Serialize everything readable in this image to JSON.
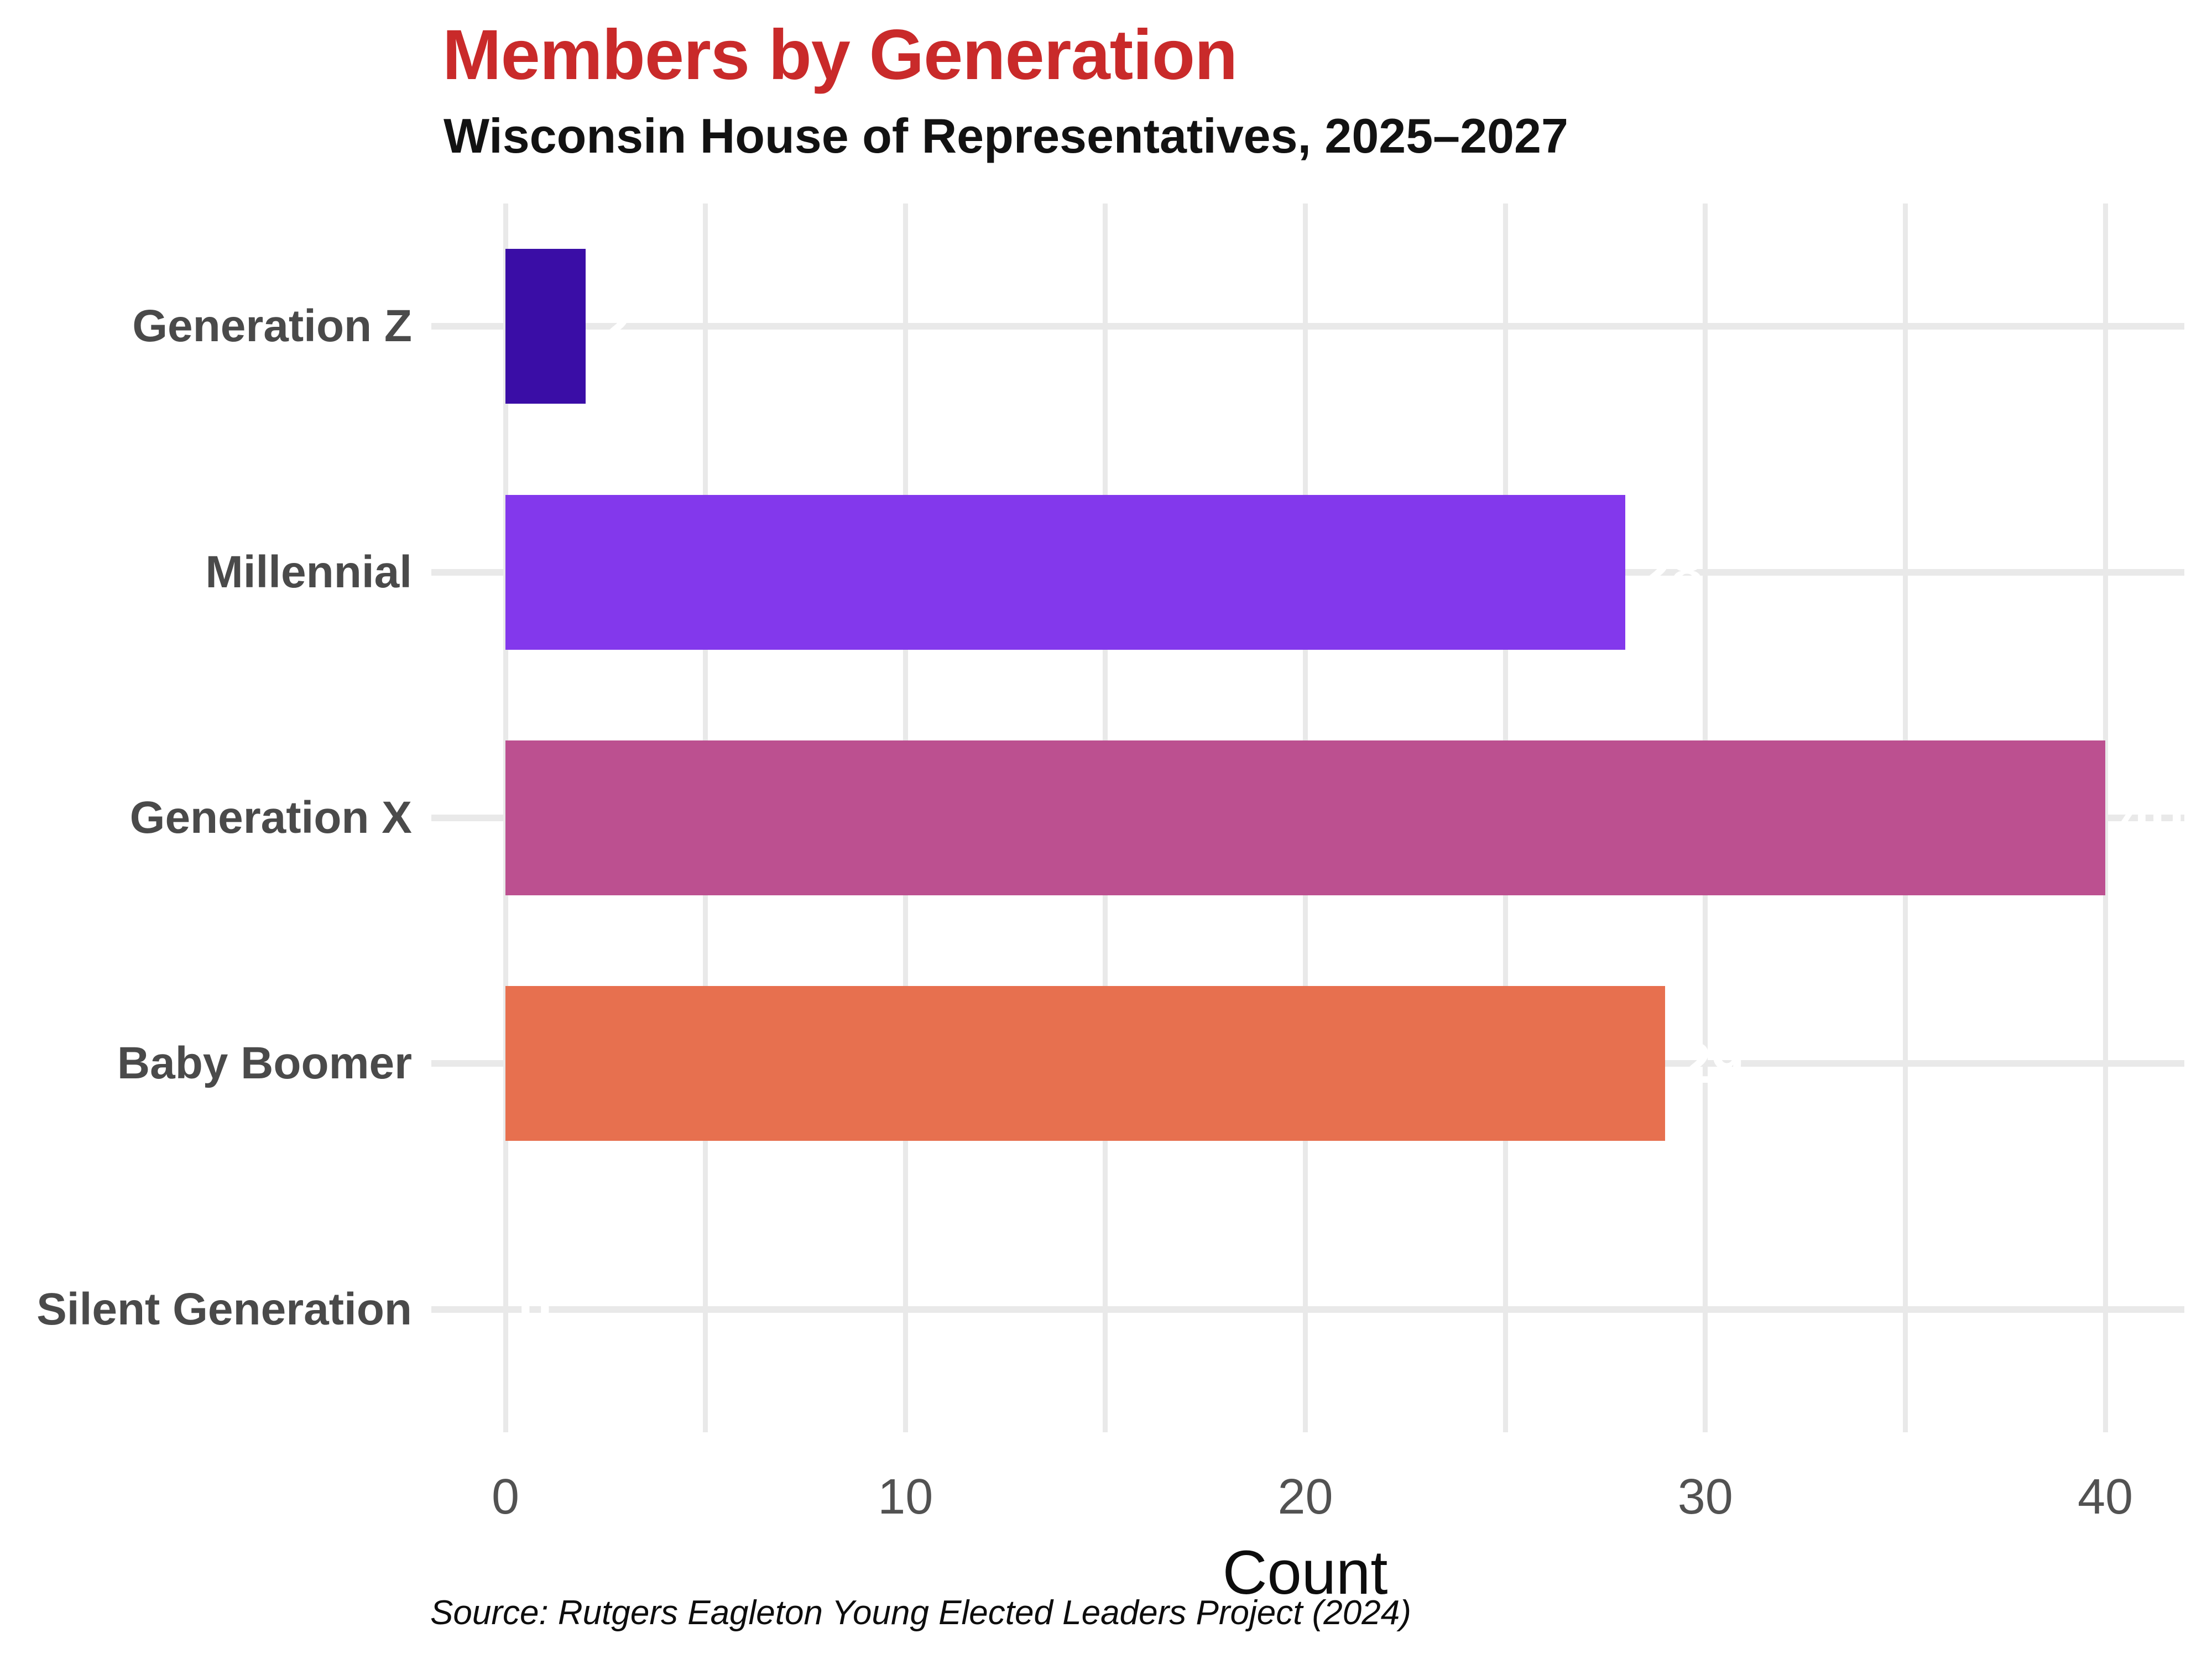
{
  "header": {
    "title": "Members by Generation",
    "subtitle": "Wisconsin House of Representatives, 2025–2027"
  },
  "footer": {
    "source": "Source: Rutgers Eagleton Young Elected Leaders Project (2024)"
  },
  "chart_data": {
    "type": "bar",
    "orientation": "horizontal",
    "title": "Members by Generation",
    "subtitle": "Wisconsin House of Representatives, 2025–2027",
    "categories": [
      "Generation Z",
      "Millennial",
      "Generation X",
      "Baby Boomer",
      "Silent Generation"
    ],
    "values": [
      2,
      28,
      40,
      29,
      0
    ],
    "bar_colors": [
      "#3a0da6",
      "#8338ec",
      "#bc5090",
      "#e7704f",
      null
    ],
    "value_labels": [
      "2",
      "28",
      "40",
      "29",
      "0"
    ],
    "value_label_color": "#ffffff",
    "xlabel": "Count",
    "ylabel": "",
    "x_ticks": [
      0,
      10,
      20,
      30,
      40
    ],
    "xlim": [
      0,
      40
    ],
    "gridline_step": 5,
    "grid": true,
    "legend": false,
    "styles": {
      "title_color": "#c92a2a",
      "subtitle_color": "#121212",
      "category_label_color": "#4a4a4a",
      "tick_label_color": "#525252",
      "gridline_color": "#e9e9e9",
      "background": "#ffffff"
    }
  }
}
